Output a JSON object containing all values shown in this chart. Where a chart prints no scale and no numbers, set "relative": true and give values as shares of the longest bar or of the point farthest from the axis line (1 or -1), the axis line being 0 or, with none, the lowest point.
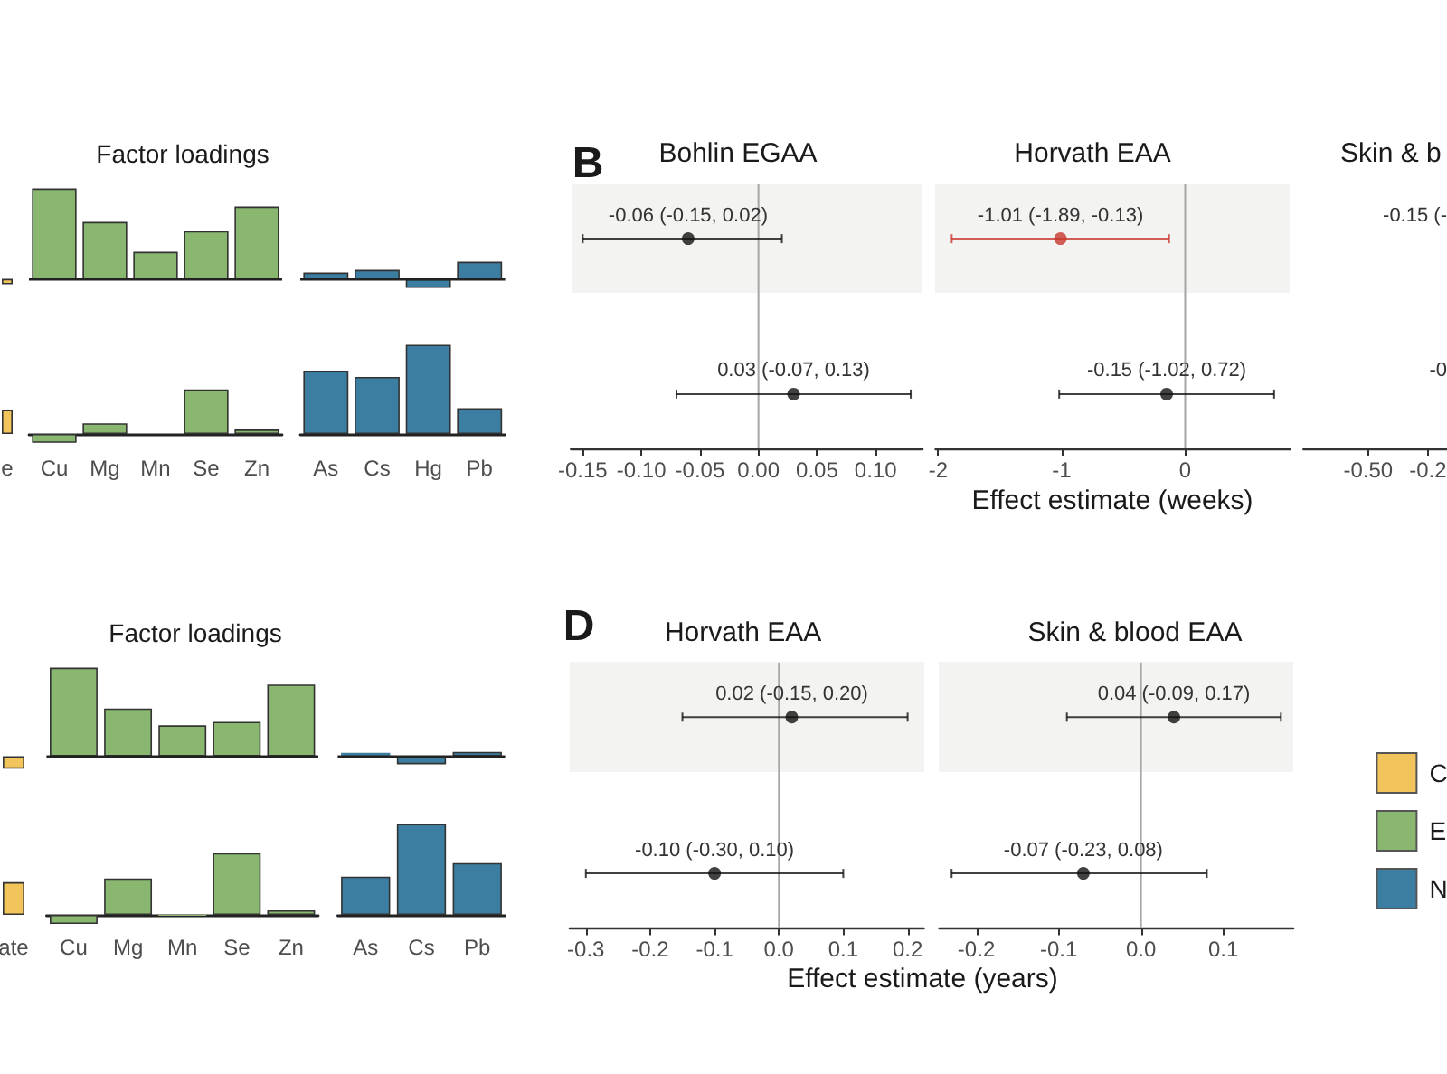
{
  "chart_data": [
    {
      "type": "bar",
      "relative": true,
      "title": "Factor loadings",
      "categories": [
        "e",
        "Cu",
        "Mg",
        "Mn",
        "Se",
        "Zn",
        "As",
        "Cs",
        "Hg",
        "Pb"
      ],
      "series": [
        {
          "color": "#f2c55c",
          "values": [
            -0.06,
            null,
            null,
            null,
            null,
            null,
            null,
            null,
            null,
            null
          ]
        },
        {
          "color": "#8ab76f",
          "values": [
            null,
            1,
            0.63,
            0.3,
            0.53,
            0.8,
            null,
            null,
            null,
            null
          ]
        },
        {
          "color": "#3b7ea1",
          "values": [
            null,
            null,
            null,
            null,
            null,
            null,
            0.07,
            0.1,
            -0.1,
            0.19
          ]
        }
      ],
      "ref_lines": [
        {
          "axis": "y",
          "value": 0,
          "color": "#222222"
        }
      ],
      "tick_labels": false
    },
    {
      "type": "bar",
      "relative": true,
      "categories": [
        "e",
        "Cu",
        "Mg",
        "Mn",
        "Se",
        "Zn",
        "As",
        "Cs",
        "Hg",
        "Pb"
      ],
      "series": [
        {
          "color": "#f2c55c",
          "values": [
            0.27,
            null,
            null,
            null,
            null,
            null,
            null,
            null,
            null,
            null
          ]
        },
        {
          "color": "#8ab76f",
          "values": [
            null,
            -0.1,
            0.12,
            null,
            0.5,
            0.05,
            null,
            null,
            null,
            null
          ]
        },
        {
          "color": "#3b7ea1",
          "values": [
            null,
            null,
            null,
            null,
            null,
            null,
            0.71,
            0.64,
            1,
            0.29
          ]
        }
      ],
      "tick_labels": "x"
    },
    {
      "type": "scatter",
      "orientation": "horizontal",
      "title": "Bohlin EGAA",
      "annotations": [
        "B"
      ],
      "categories": [
        null,
        null
      ],
      "values": [
        -0.06,
        0.03
      ],
      "errors": [
        [
          -0.15,
          0.02
        ],
        [
          -0.07,
          0.13
        ]
      ],
      "value_labels": [
        "-0.06 (-0.15, 0.02)",
        "0.03 (-0.07, 0.13)"
      ],
      "color": "#111111",
      "marker": "circle",
      "xlim": [
        -0.16,
        0.14
      ],
      "xticks": [
        -0.15,
        {
          "value": -0.1,
          "label": "-0.10"
        },
        -0.05,
        {
          "value": 0,
          "label": "0.00"
        },
        0.05,
        {
          "value": 0.1,
          "label": "0.10"
        }
      ],
      "ref_lines": [
        {
          "axis": "x",
          "value": 0,
          "color": "#a6a6a6"
        }
      ],
      "tick_labels": "x"
    },
    {
      "type": "scatter",
      "orientation": "horizontal",
      "title": "Horvath EAA",
      "xlabel": "Effect estimate (weeks)",
      "categories": [
        null,
        null
      ],
      "values": [
        -1.01,
        -0.15
      ],
      "errors": [
        [
          -1.89,
          -0.13
        ],
        [
          -1.02,
          0.72
        ]
      ],
      "value_labels": [
        "-1.01 (-1.89, -0.13)",
        "-0.15 (-1.02, 0.72)"
      ],
      "colors": [
        "#c8382f",
        "#111111"
      ],
      "marker": "circle",
      "xlim": [
        -2.02,
        0.85
      ],
      "xticks": [
        -2,
        -1,
        0
      ],
      "ref_lines": [
        {
          "axis": "x",
          "value": 0,
          "color": "#a6a6a6"
        }
      ],
      "tick_labels": "x"
    },
    {
      "type": "scatter",
      "orientation": "horizontal",
      "title": "Skin & b",
      "categories": [
        null,
        null
      ],
      "values": [
        null,
        null
      ],
      "value_labels": [
        "-0.15 (-",
        "-0"
      ],
      "xlim": [
        -0.77,
        -0.17
      ],
      "xticks": [
        {
          "value": -0.5,
          "label": "-0.50"
        },
        {
          "value": -0.25,
          "label": "-0.2"
        }
      ],
      "tick_labels": "x"
    },
    {
      "type": "bar",
      "relative": true,
      "title": "Factor loadings",
      "categories": [
        "ate",
        "Cu",
        "Mg",
        "Mn",
        "Se",
        "Zn",
        "As",
        "Cs",
        "Pb"
      ],
      "series": [
        {
          "color": "#f2c55c",
          "values": [
            -0.14,
            null,
            null,
            null,
            null,
            null,
            null,
            null,
            null
          ]
        },
        {
          "color": "#8ab76f",
          "values": [
            null,
            1,
            0.54,
            0.35,
            0.39,
            0.81,
            null,
            null,
            null
          ]
        },
        {
          "color": "#3b7ea1",
          "values": [
            null,
            null,
            null,
            null,
            null,
            null,
            0.04,
            -0.09,
            0.05
          ]
        }
      ],
      "ref_lines": [
        {
          "axis": "y",
          "value": 0,
          "color": "#222222"
        }
      ],
      "tick_labels": false
    },
    {
      "type": "bar",
      "relative": true,
      "categories": [
        "ate",
        "Cu",
        "Mg",
        "Mn",
        "Se",
        "Zn",
        "As",
        "Cs",
        "Pb"
      ],
      "series": [
        {
          "name": "C",
          "color": "#f2c55c",
          "values": [
            0.36,
            null,
            null,
            null,
            null,
            null,
            null,
            null,
            null
          ]
        },
        {
          "name": "E",
          "color": "#8ab76f",
          "values": [
            null,
            -0.1,
            0.4,
            -0.01,
            0.68,
            0.05,
            null,
            null,
            null
          ]
        },
        {
          "name": "N",
          "color": "#3b7ea1",
          "values": [
            null,
            null,
            null,
            null,
            null,
            null,
            0.42,
            1,
            0.57
          ]
        }
      ],
      "legend": "right",
      "tick_labels": "x"
    },
    {
      "type": "scatter",
      "orientation": "horizontal",
      "title": "Horvath EAA",
      "annotations": [
        "D"
      ],
      "xlabel": "Effect estimate (years)",
      "categories": [
        null,
        null
      ],
      "values": [
        0.02,
        -0.1
      ],
      "errors": [
        [
          -0.15,
          0.2
        ],
        [
          -0.3,
          0.1
        ]
      ],
      "value_labels": [
        "0.02 (-0.15, 0.20)",
        "-0.10 (-0.30, 0.10)"
      ],
      "color": "#111111",
      "marker": "circle",
      "xlim": [
        -0.325,
        0.225
      ],
      "xticks": [
        -0.3,
        -0.2,
        -0.1,
        {
          "value": 0,
          "label": "0.0"
        },
        0.1,
        0.2
      ],
      "ref_lines": [
        {
          "axis": "x",
          "value": 0,
          "color": "#a6a6a6"
        }
      ],
      "tick_labels": "x"
    },
    {
      "type": "scatter",
      "orientation": "horizontal",
      "title": "Skin & blood EAA",
      "categories": [
        null,
        null
      ],
      "values": [
        0.04,
        -0.07
      ],
      "errors": [
        [
          -0.09,
          0.17
        ],
        [
          -0.23,
          0.08
        ]
      ],
      "value_labels": [
        "0.04 (-0.09, 0.17)",
        "-0.07 (-0.23, 0.08)"
      ],
      "color": "#111111",
      "marker": "circle",
      "xlim": [
        -0.245,
        0.185
      ],
      "xticks": [
        -0.2,
        -0.1,
        {
          "value": 0,
          "label": "0.0"
        },
        0.1
      ],
      "ref_lines": [
        {
          "axis": "x",
          "value": 0,
          "color": "#a6a6a6"
        }
      ],
      "tick_labels": "x"
    }
  ]
}
